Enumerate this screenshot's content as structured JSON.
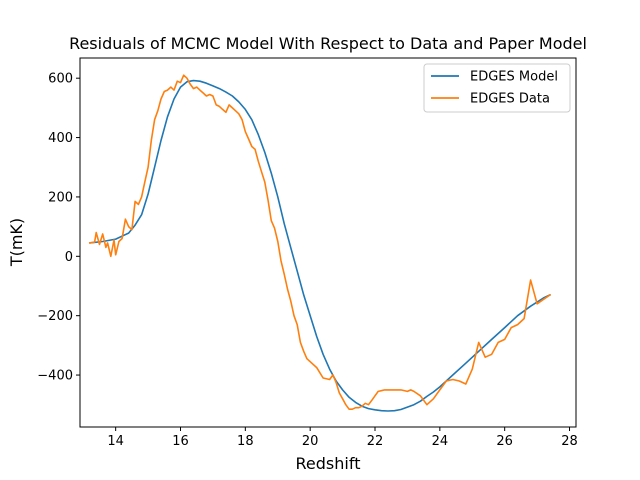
{
  "chart_data": {
    "type": "line",
    "title": "Residuals of MCMC Model With Respect to Data and Paper Model",
    "xlabel": "Redshift",
    "ylabel": "T(mK)",
    "xlim": [
      12.9,
      28.2
    ],
    "ylim": [
      -575,
      668
    ],
    "xticks": [
      14,
      16,
      18,
      20,
      22,
      24,
      26,
      28
    ],
    "yticks": [
      -400,
      -200,
      0,
      200,
      400,
      600
    ],
    "grid": false,
    "legend_position": "top-right",
    "series": [
      {
        "name": "EDGES Model",
        "color": "#1f77b4",
        "x": [
          13.2,
          13.6,
          14.0,
          14.4,
          14.6,
          14.8,
          15.0,
          15.2,
          15.4,
          15.6,
          15.8,
          16.0,
          16.2,
          16.4,
          16.6,
          16.8,
          17.0,
          17.2,
          17.4,
          17.6,
          17.8,
          18.0,
          18.2,
          18.4,
          18.6,
          18.8,
          19.0,
          19.2,
          19.4,
          19.6,
          19.8,
          20.0,
          20.2,
          20.4,
          20.6,
          20.8,
          21.0,
          21.2,
          21.4,
          21.6,
          21.8,
          22.0,
          22.2,
          22.4,
          22.6,
          22.8,
          23.0,
          23.2,
          23.4,
          23.6,
          23.8,
          24.0,
          24.4,
          24.8,
          25.2,
          25.6,
          26.0,
          26.4,
          26.8,
          27.2,
          27.4
        ],
        "y": [
          45,
          50,
          58,
          78,
          105,
          140,
          210,
          300,
          390,
          470,
          530,
          570,
          588,
          592,
          590,
          583,
          574,
          565,
          553,
          540,
          520,
          495,
          460,
          410,
          350,
          280,
          200,
          110,
          30,
          -50,
          -130,
          -200,
          -270,
          -330,
          -380,
          -420,
          -450,
          -475,
          -492,
          -505,
          -513,
          -517,
          -520,
          -521,
          -520,
          -516,
          -508,
          -500,
          -488,
          -472,
          -457,
          -440,
          -400,
          -360,
          -320,
          -280,
          -240,
          -200,
          -168,
          -140,
          -130
        ]
      },
      {
        "name": "EDGES Data",
        "color": "#ff7f0e",
        "x": [
          13.2,
          13.35,
          13.4,
          13.5,
          13.6,
          13.7,
          13.75,
          13.85,
          13.95,
          14.0,
          14.1,
          14.2,
          14.3,
          14.4,
          14.5,
          14.6,
          14.7,
          14.8,
          14.9,
          15.0,
          15.1,
          15.2,
          15.3,
          15.4,
          15.5,
          15.6,
          15.7,
          15.8,
          15.9,
          16.0,
          16.1,
          16.2,
          16.3,
          16.4,
          16.5,
          16.6,
          16.7,
          16.8,
          16.9,
          17.0,
          17.1,
          17.2,
          17.3,
          17.4,
          17.5,
          17.6,
          17.7,
          17.8,
          17.9,
          18.0,
          18.1,
          18.2,
          18.3,
          18.4,
          18.5,
          18.6,
          18.7,
          18.8,
          18.9,
          19.0,
          19.1,
          19.2,
          19.3,
          19.4,
          19.5,
          19.6,
          19.7,
          19.8,
          19.9,
          20.0,
          20.2,
          20.4,
          20.6,
          20.7,
          20.8,
          20.9,
          21.0,
          21.1,
          21.2,
          21.3,
          21.4,
          21.5,
          21.6,
          21.7,
          21.8,
          21.9,
          22.0,
          22.1,
          22.3,
          22.5,
          22.6,
          22.8,
          23.0,
          23.1,
          23.2,
          23.4,
          23.6,
          23.8,
          24.0,
          24.2,
          24.4,
          24.6,
          24.8,
          25.0,
          25.2,
          25.4,
          25.6,
          25.8,
          26.0,
          26.2,
          26.4,
          26.6,
          26.8,
          27.0,
          27.2,
          27.4
        ],
        "y": [
          45,
          48,
          80,
          40,
          75,
          30,
          45,
          0,
          55,
          5,
          50,
          60,
          125,
          100,
          90,
          185,
          175,
          200,
          250,
          300,
          390,
          460,
          490,
          530,
          555,
          560,
          570,
          560,
          590,
          585,
          610,
          600,
          580,
          565,
          570,
          560,
          550,
          540,
          545,
          540,
          510,
          505,
          495,
          485,
          510,
          500,
          490,
          480,
          460,
          420,
          395,
          370,
          360,
          320,
          285,
          250,
          190,
          120,
          95,
          50,
          -15,
          -60,
          -110,
          -150,
          -200,
          -230,
          -290,
          -320,
          -345,
          -355,
          -375,
          -410,
          -415,
          -400,
          -425,
          -460,
          -480,
          -500,
          -515,
          -515,
          -510,
          -510,
          -505,
          -495,
          -500,
          -485,
          -470,
          -455,
          -450,
          -450,
          -450,
          -450,
          -455,
          -450,
          -455,
          -470,
          -500,
          -480,
          -450,
          -420,
          -415,
          -420,
          -430,
          -380,
          -290,
          -340,
          -330,
          -290,
          -280,
          -240,
          -230,
          -210,
          -80,
          -160,
          -145,
          -130
        ]
      }
    ]
  }
}
